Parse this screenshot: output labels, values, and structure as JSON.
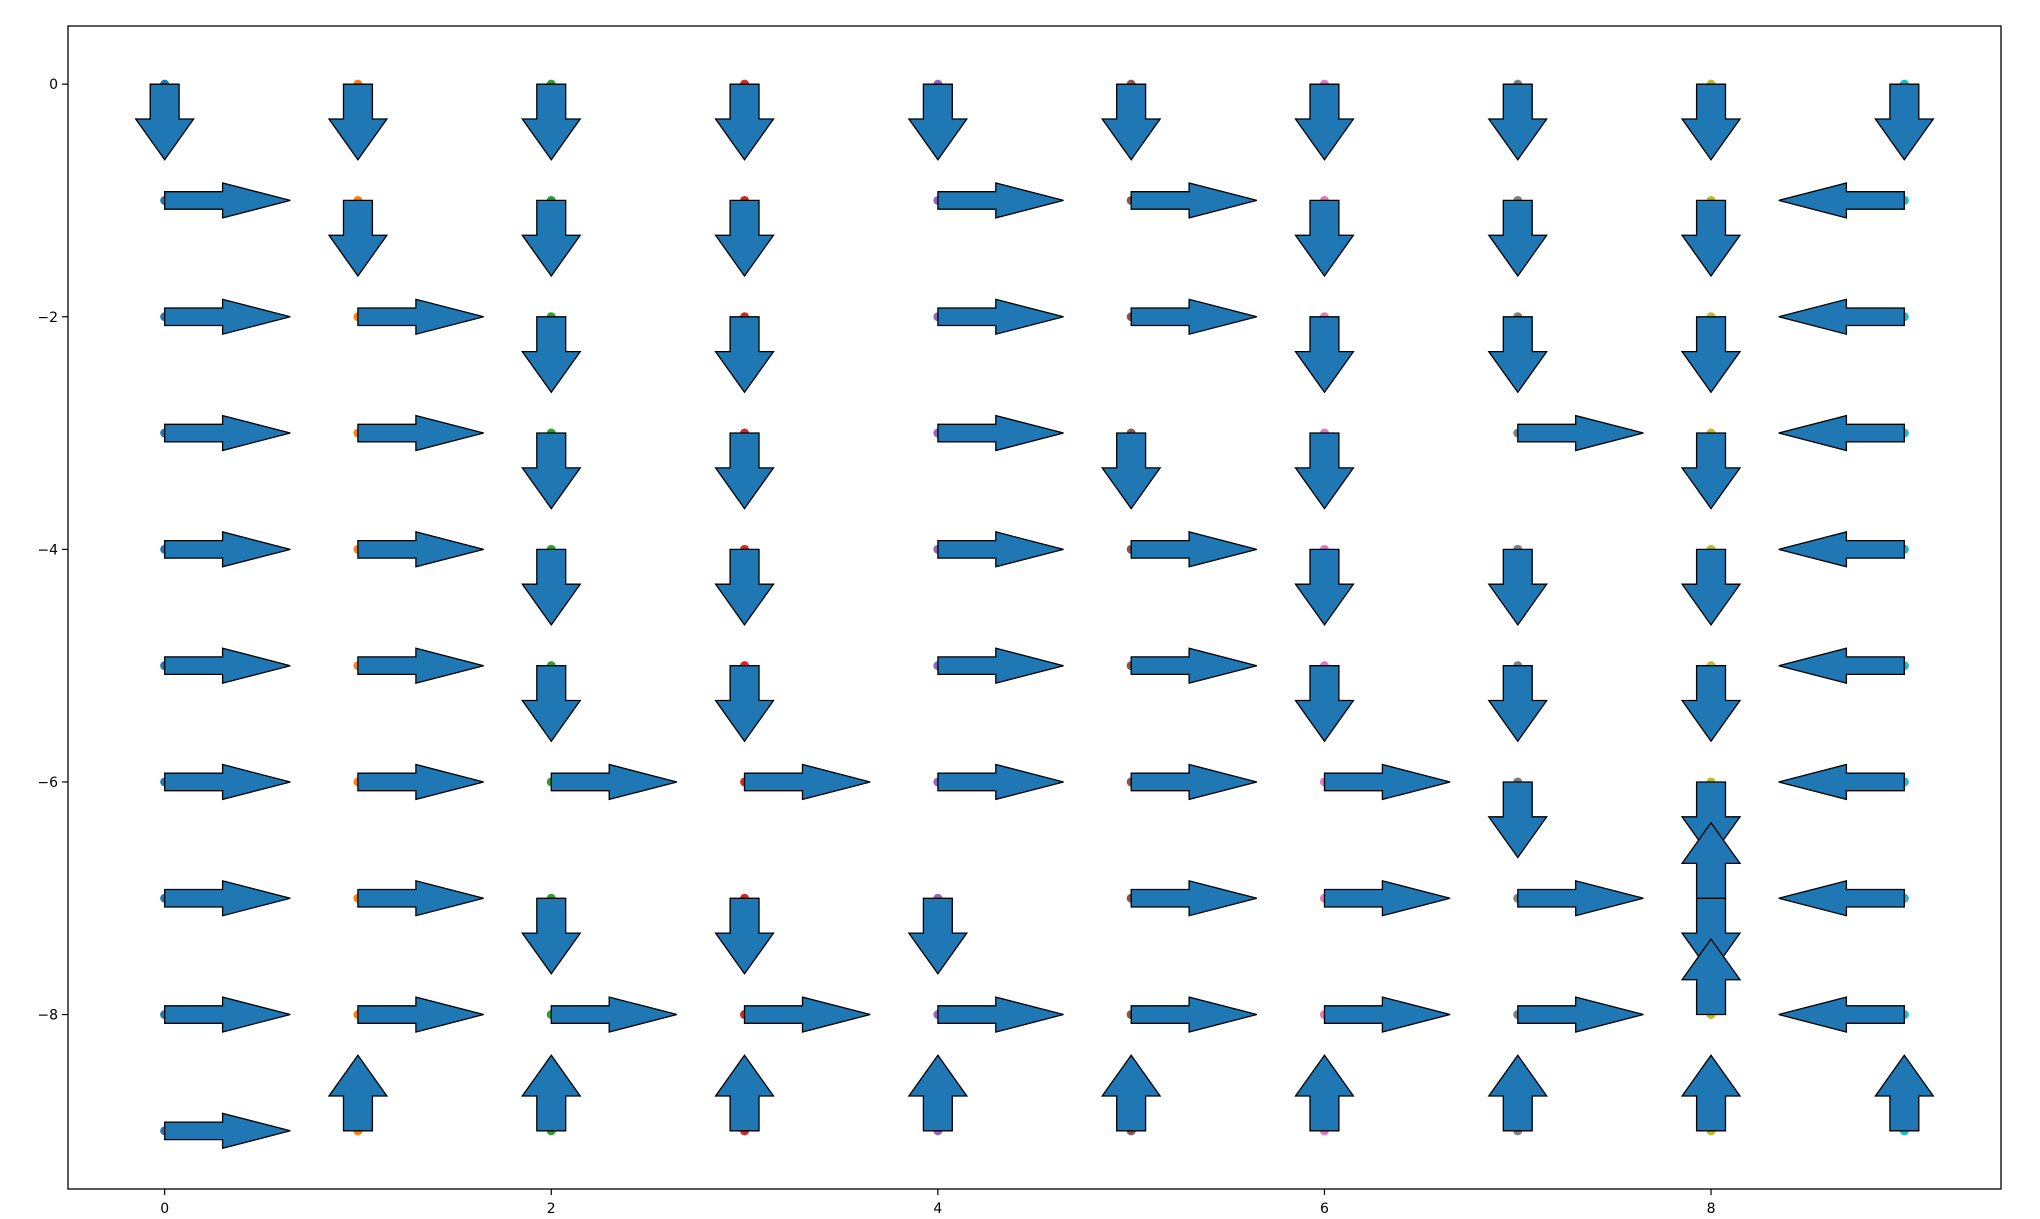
{
  "chart_data": {
    "type": "quiver",
    "title": "",
    "xlabel": "",
    "ylabel": "",
    "xlim": [
      -0.5,
      9.5
    ],
    "ylim": [
      -9.5,
      0.5
    ],
    "xticks": [
      0,
      2,
      4,
      6,
      8
    ],
    "yticks": [
      0,
      -2,
      -4,
      -6,
      -8
    ],
    "grid": false,
    "arrow_color": "#1f77b4",
    "column_marker_colors": [
      "#1f77b4",
      "#ff7f0e",
      "#2ca02c",
      "#d62728",
      "#9467bd",
      "#8c564b",
      "#e377c2",
      "#7f7f7f",
      "#bcbd22",
      "#17becf"
    ],
    "direction_key": {
      "R": "right",
      "L": "left",
      "U": "up",
      "D": "down",
      "N": "none"
    },
    "directions_by_row": [
      [
        "D",
        "D",
        "D",
        "D",
        "D",
        "D",
        "D",
        "D",
        "D",
        "D"
      ],
      [
        "R",
        "D",
        "D",
        "D",
        "R",
        "R",
        "D",
        "D",
        "D",
        "L"
      ],
      [
        "R",
        "R",
        "D",
        "D",
        "R",
        "R",
        "D",
        "D",
        "D",
        "L"
      ],
      [
        "R",
        "R",
        "D",
        "D",
        "R",
        "D",
        "D",
        "R",
        "D",
        "L"
      ],
      [
        "R",
        "R",
        "D",
        "D",
        "R",
        "R",
        "D",
        "D",
        "D",
        "L"
      ],
      [
        "R",
        "R",
        "D",
        "D",
        "R",
        "R",
        "D",
        "D",
        "D",
        "L"
      ],
      [
        "R",
        "R",
        "R",
        "R",
        "R",
        "R",
        "R",
        "D",
        "D",
        "L"
      ],
      [
        "R",
        "R",
        "D",
        "D",
        "D",
        "R",
        "R",
        "R",
        "D",
        "L"
      ],
      [
        "R",
        "R",
        "R",
        "R",
        "R",
        "R",
        "R",
        "R",
        "U",
        "L"
      ],
      [
        "R",
        "U",
        "U",
        "U",
        "U",
        "U",
        "U",
        "U",
        "U",
        "U"
      ]
    ],
    "extra_arrows": [
      {
        "x": 8,
        "y": -7,
        "dir": "U"
      }
    ]
  }
}
